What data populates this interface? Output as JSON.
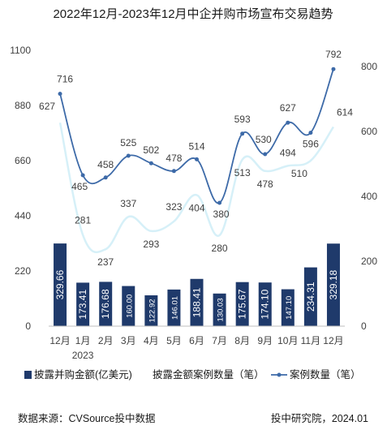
{
  "chart_data": {
    "type": "bar",
    "title": "2022年12月-2023年12月中企并购市场宣布交易趋势",
    "categories": [
      "12月",
      "1月",
      "2月",
      "3月",
      "4月",
      "5月",
      "6月",
      "7月",
      "8月",
      "9月",
      "10月",
      "11月",
      "12月"
    ],
    "year_label": "2023",
    "ylim_left": [
      0,
      1100
    ],
    "yticks_left": [
      0,
      220,
      440,
      660,
      880,
      1100
    ],
    "ylim_right": [
      0,
      850
    ],
    "yticks_right": [
      0,
      200,
      400,
      600,
      800
    ],
    "series": [
      {
        "name": "披露并购金额(亿美元)",
        "type": "bar",
        "axis": "left",
        "color": "#1f3a6b",
        "values": [
          329.66,
          173.41,
          176.68,
          160.0,
          122.92,
          146.01,
          188.41,
          130.03,
          175.67,
          174.1,
          147.1,
          234.31,
          329.18
        ],
        "labels": [
          "329.66",
          "173.41",
          "176.68",
          "160.00",
          "122.92",
          "146.01",
          "188.41",
          "130.03",
          "175.67",
          "174.10",
          "147.10",
          "234.31",
          "329.18"
        ]
      },
      {
        "name": "披露金额案例数量（笔）",
        "type": "line",
        "axis": "right",
        "color": "#d6f0f8",
        "values": [
          627,
          281,
          237,
          337,
          293,
          323,
          404,
          280,
          513,
          478,
          494,
          510,
          614
        ]
      },
      {
        "name": "案例数量（笔）",
        "type": "line",
        "axis": "right",
        "color": "#3d6aa8",
        "values": [
          716,
          465,
          458,
          525,
          502,
          478,
          514,
          380,
          593,
          530,
          627,
          596,
          792
        ]
      }
    ]
  },
  "footer": {
    "source": "数据来源：CVSource投中数据",
    "credit": "投中研究院，2024.01"
  }
}
